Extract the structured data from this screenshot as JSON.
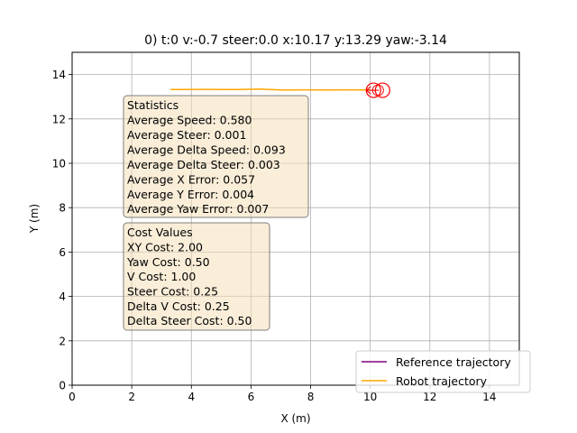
{
  "chart_data": {
    "type": "line",
    "title": "0) t:0 v:-0.7 steer:0.0 x:10.17 y:13.29 yaw:-3.14",
    "xlabel": "X (m)",
    "ylabel": "Y (m)",
    "xlim": [
      0,
      15
    ],
    "ylim": [
      0,
      15
    ],
    "xticks": [
      0,
      2,
      4,
      6,
      8,
      10,
      12,
      14
    ],
    "yticks": [
      0,
      2,
      4,
      6,
      8,
      10,
      12,
      14
    ],
    "grid": true,
    "legend_position": "lower-right",
    "series": [
      {
        "name": "Reference trajectory",
        "color": "#800080",
        "x": [],
        "y": []
      },
      {
        "name": "Robot trajectory",
        "color": "#ffa500",
        "x": [
          3.3,
          4.5,
          5.5,
          6.3,
          7.0,
          7.8,
          8.6,
          9.3,
          10.0
        ],
        "y": [
          13.32,
          13.33,
          13.32,
          13.34,
          13.3,
          13.31,
          13.3,
          13.31,
          13.3
        ]
      }
    ],
    "robot": {
      "x": 10.17,
      "y": 13.29,
      "yaw": -3.14,
      "color": "#ff0000"
    },
    "annotations": [
      {
        "heading": "Statistics",
        "lines": [
          "Average Speed: 0.580",
          "Average Steer: 0.001",
          "Average Delta Speed: 0.093",
          "Average Delta Steer: 0.003",
          "Average X Error: 0.057",
          "Average Y Error: 0.004",
          "Average Yaw Error: 0.007"
        ]
      },
      {
        "heading": "Cost Values",
        "lines": [
          "XY Cost: 2.00",
          "Yaw Cost: 0.50",
          "V Cost: 1.00",
          "Steer Cost: 0.25",
          "Delta V Cost: 0.25",
          "Delta Steer Cost: 0.50"
        ]
      }
    ]
  }
}
